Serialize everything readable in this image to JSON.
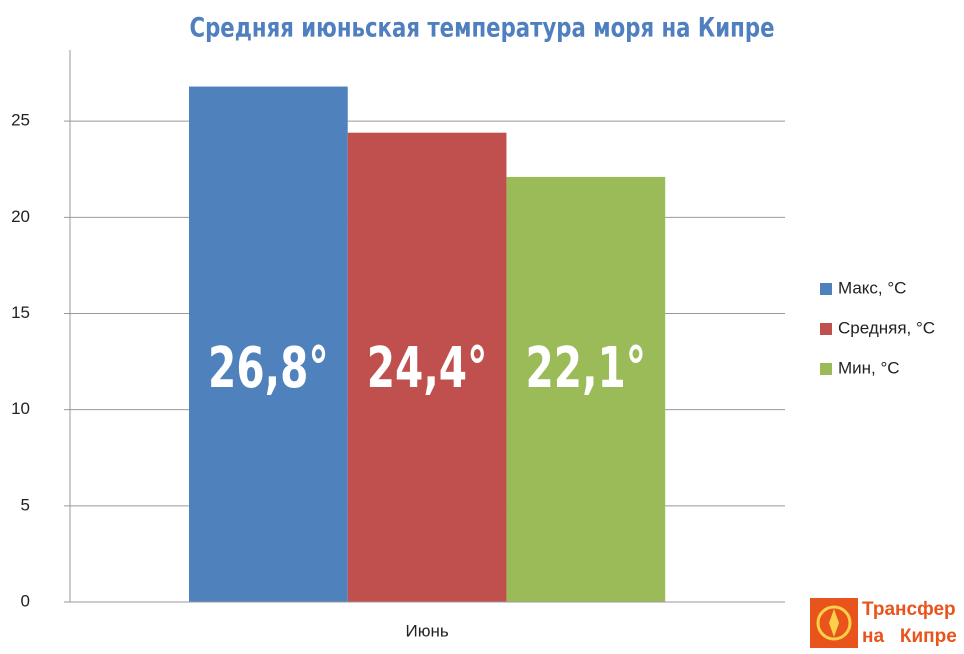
{
  "chart_data": {
    "type": "bar",
    "title": "Средняя июньская температура моря на Кипре",
    "categories": [
      "Июнь"
    ],
    "series": [
      {
        "name": "Макс, °C",
        "color": "#4f81bd",
        "values": [
          26.8
        ],
        "value_labels": [
          "26,8°"
        ]
      },
      {
        "name": "Средняя, °C",
        "color": "#c0504d",
        "values": [
          24.4
        ],
        "value_labels": [
          "24,4°"
        ]
      },
      {
        "name": "Мин, °C",
        "color": "#9bbb59",
        "values": [
          22.1
        ],
        "value_labels": [
          "22,1°"
        ]
      }
    ],
    "ylim": [
      0,
      28.7
    ],
    "yticks": [
      0,
      5,
      10,
      15,
      20,
      25
    ],
    "grid": true,
    "legend": "right"
  },
  "logo": {
    "line1": "Трансфер",
    "line2": "на   Кипре"
  }
}
